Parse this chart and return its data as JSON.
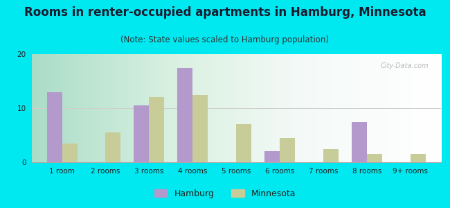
{
  "title": "Rooms in renter-occupied apartments in Hamburg, Minnesota",
  "subtitle": "(Note: State values scaled to Hamburg population)",
  "categories": [
    "1 room",
    "2 rooms",
    "3 rooms",
    "4 rooms",
    "5 rooms",
    "6 rooms",
    "7 rooms",
    "8 rooms",
    "9+ rooms"
  ],
  "hamburg_values": [
    13,
    0,
    10.5,
    17.5,
    0,
    2,
    0,
    7.5,
    0
  ],
  "minnesota_values": [
    3.5,
    5.5,
    12,
    12.5,
    7,
    4.5,
    2.5,
    1.5,
    1.5
  ],
  "hamburg_color": "#b399cc",
  "minnesota_color": "#c8cc99",
  "background_outer": "#00e8f0",
  "ylim": [
    0,
    20
  ],
  "yticks": [
    0,
    10,
    20
  ],
  "bar_width": 0.35,
  "figsize": [
    6.5,
    3.0
  ],
  "dpi": 100,
  "title_fontsize": 12,
  "subtitle_fontsize": 8.5,
  "tick_fontsize": 7.5,
  "legend_fontsize": 9
}
